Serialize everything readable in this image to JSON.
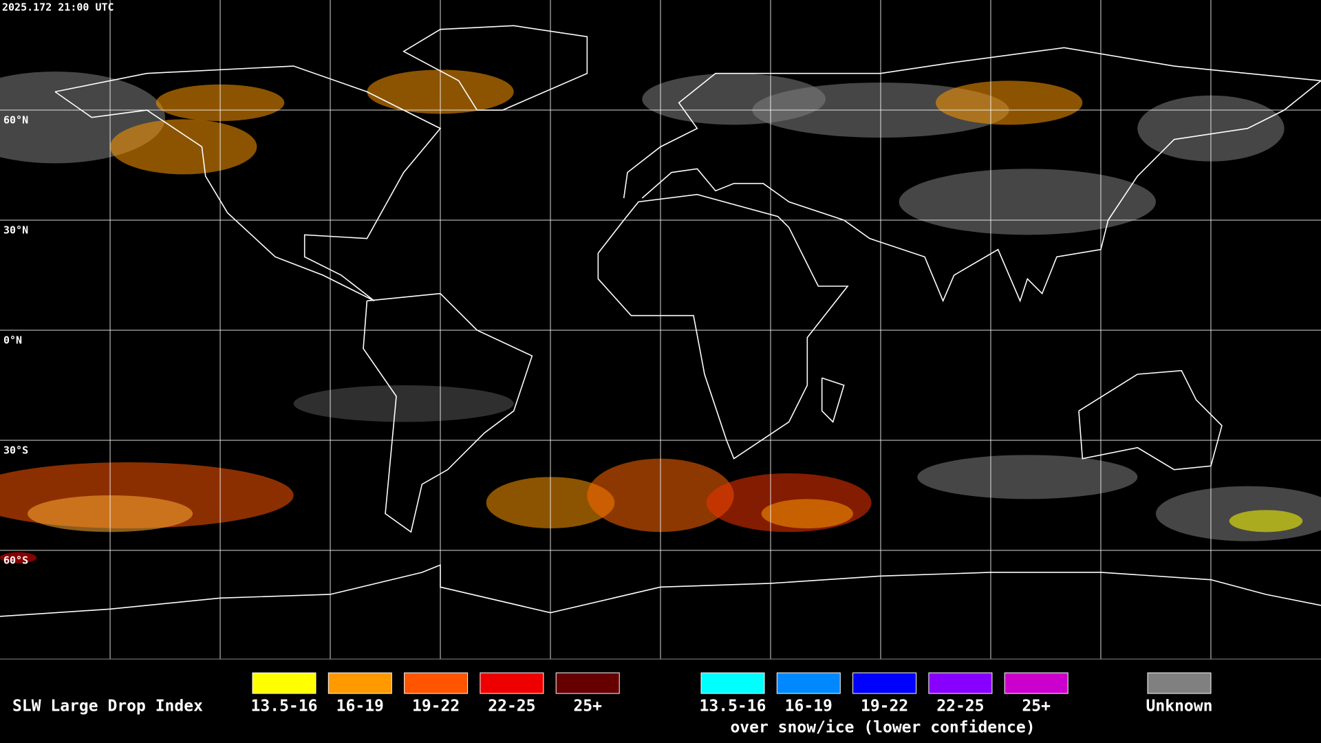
{
  "header": {
    "timestamp": "2025.172 21:00 UTC"
  },
  "grid": {
    "lat_labels": [
      "60°N",
      "30°N",
      "0°N",
      "30°S",
      "60°S"
    ]
  },
  "legend": {
    "title": "SLW Large Drop Index",
    "liquid": [
      {
        "label": "13.5-16",
        "color": "#ffff00"
      },
      {
        "label": "16-19",
        "color": "#ff9900"
      },
      {
        "label": "19-22",
        "color": "#ff5500"
      },
      {
        "label": "22-25",
        "color": "#ee0000"
      },
      {
        "label": "25+",
        "color": "#660000"
      }
    ],
    "snow_ice": [
      {
        "label": "13.5-16",
        "color": "#00ffff"
      },
      {
        "label": "16-19",
        "color": "#0088ff"
      },
      {
        "label": "19-22",
        "color": "#0000ff"
      },
      {
        "label": "22-25",
        "color": "#8800ff"
      },
      {
        "label": "25+",
        "color": "#cc00cc"
      }
    ],
    "snow_ice_caption": "over snow/ice (lower confidence)",
    "unknown": {
      "label": "Unknown",
      "color": "#808080"
    }
  }
}
